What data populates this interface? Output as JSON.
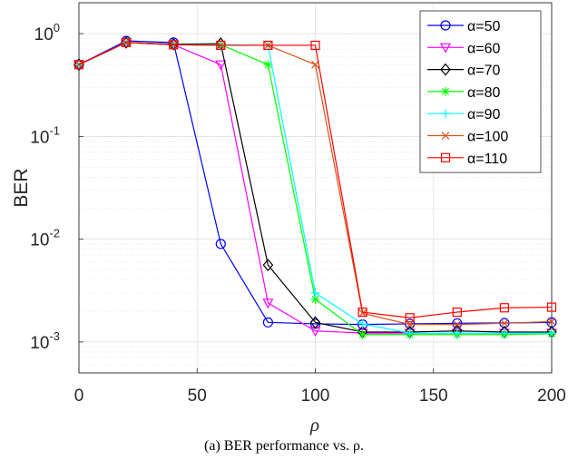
{
  "chart_data": {
    "type": "line",
    "title": "",
    "xlabel": "ρ",
    "ylabel": "BER",
    "xlim": [
      0,
      200
    ],
    "ylim": [
      0.0005,
      2
    ],
    "yscale": "log",
    "grid": true,
    "legend_position": "top-right",
    "x_ticks": [
      "0",
      "50",
      "100",
      "150",
      "200"
    ],
    "y_ticks": [
      {
        "base": "10",
        "exp": "0"
      },
      {
        "base": "10",
        "exp": "-1"
      },
      {
        "base": "10",
        "exp": "-2"
      },
      {
        "base": "10",
        "exp": "-3"
      }
    ],
    "x": [
      0,
      20,
      40,
      60,
      80,
      100,
      120,
      140,
      160,
      180,
      200
    ],
    "series": [
      {
        "name": "α=50",
        "color": "#0000ff",
        "marker": "circle",
        "values": [
          0.5,
          0.85,
          0.82,
          0.009,
          0.00155,
          0.0015,
          0.00148,
          0.0015,
          0.00152,
          0.00153,
          0.00155
        ]
      },
      {
        "name": "α=60",
        "color": "#ff00ff",
        "marker": "triangle-down",
        "values": [
          0.5,
          0.82,
          0.78,
          0.5,
          0.0024,
          0.00128,
          0.00122,
          0.00122,
          0.00122,
          0.00122,
          0.00122
        ]
      },
      {
        "name": "α=70",
        "color": "#000000",
        "marker": "diamond",
        "values": [
          0.5,
          0.82,
          0.79,
          0.8,
          0.0056,
          0.00155,
          0.00125,
          0.00125,
          0.00128,
          0.00125,
          0.00125
        ]
      },
      {
        "name": "α=80",
        "color": "#00ff00",
        "marker": "star",
        "values": [
          0.5,
          0.82,
          0.78,
          0.78,
          0.5,
          0.0026,
          0.00118,
          0.00118,
          0.00118,
          0.00118,
          0.0012
        ]
      },
      {
        "name": "α=90",
        "color": "#00ffff",
        "marker": "plus",
        "values": [
          0.5,
          0.82,
          0.78,
          0.78,
          0.77,
          0.003,
          0.0015,
          0.00122,
          0.00122,
          0.00122,
          0.00122
        ]
      },
      {
        "name": "α=100",
        "color": "#d95319",
        "marker": "x",
        "values": [
          0.5,
          0.82,
          0.78,
          0.77,
          0.77,
          0.5,
          0.0019,
          0.00148,
          0.00148,
          0.00152,
          0.00158
        ]
      },
      {
        "name": "α=110",
        "color": "#ff0000",
        "marker": "square",
        "values": [
          0.5,
          0.82,
          0.78,
          0.77,
          0.77,
          0.77,
          0.00195,
          0.00172,
          0.00195,
          0.00215,
          0.00218
        ]
      }
    ]
  },
  "caption": "(a) BER performance vs. ρ."
}
